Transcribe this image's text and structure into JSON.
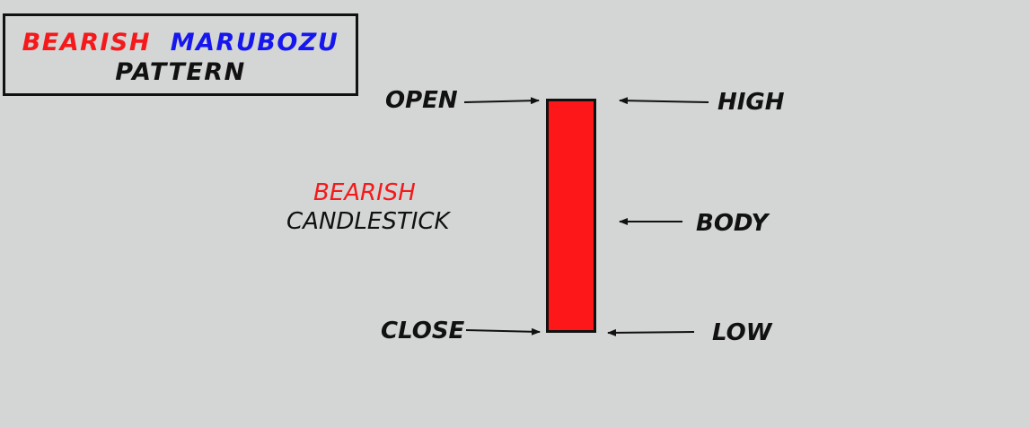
{
  "title": {
    "word1": "BEARISH",
    "word2": "MARUBOZU",
    "line2": "PATTERN",
    "word1_color": "#f5191b",
    "word2_color": "#1616ee"
  },
  "candle_caption": {
    "line1": "BEARISH",
    "line2": "CANDLESTICK",
    "line1_color": "#f5191b"
  },
  "labels": {
    "open": "OPEN",
    "close": "CLOSE",
    "high": "HIGH",
    "body": "BODY",
    "low": "LOW"
  },
  "candle": {
    "fill_color": "#fe1718",
    "border_color": "#111111"
  },
  "background_color": "#d3d6d5"
}
